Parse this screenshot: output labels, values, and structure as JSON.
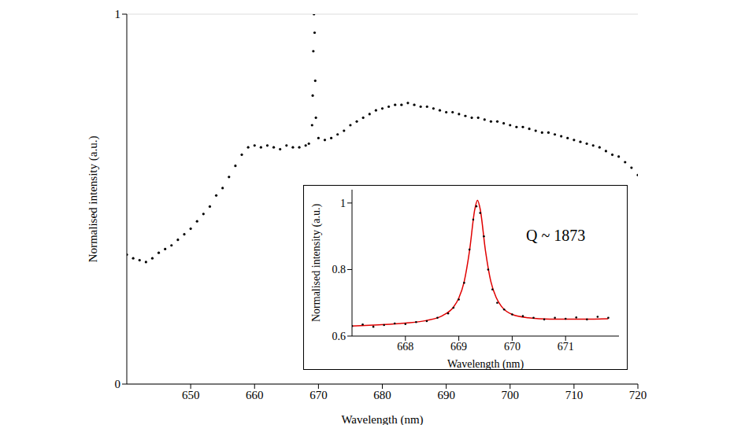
{
  "chart_data": [
    {
      "type": "scatter",
      "x_label": "Wavelength (nm)",
      "y_label": "Normalised intensity (a.u.)",
      "color": "#000000",
      "x": [
        640,
        641,
        642,
        643,
        644,
        645,
        646,
        647,
        648,
        649,
        650,
        651,
        652,
        653,
        654,
        655,
        656,
        657,
        658,
        659,
        660,
        661,
        662,
        663,
        664,
        665,
        666,
        667,
        668,
        668.5,
        669,
        669.1,
        669.2,
        669.3,
        669.4,
        669.5,
        669.6,
        670,
        671,
        672,
        673,
        674,
        675,
        676,
        677,
        678,
        679,
        680,
        681,
        682,
        683,
        684,
        685,
        686,
        687,
        688,
        689,
        690,
        691,
        692,
        693,
        694,
        695,
        696,
        697,
        698,
        699,
        700,
        701,
        702,
        703,
        704,
        705,
        706,
        707,
        708,
        709,
        710,
        711,
        712,
        713,
        714,
        715,
        716,
        717,
        718,
        719,
        720
      ],
      "values": [
        0.35,
        0.34,
        0.335,
        0.33,
        0.34,
        0.355,
        0.365,
        0.375,
        0.39,
        0.405,
        0.42,
        0.44,
        0.46,
        0.48,
        0.51,
        0.53,
        0.56,
        0.59,
        0.62,
        0.64,
        0.645,
        0.64,
        0.645,
        0.64,
        0.635,
        0.645,
        0.64,
        0.64,
        0.645,
        0.65,
        0.7,
        0.78,
        0.9,
        1.0,
        0.95,
        0.82,
        0.72,
        0.665,
        0.66,
        0.665,
        0.675,
        0.685,
        0.7,
        0.71,
        0.72,
        0.73,
        0.74,
        0.745,
        0.75,
        0.755,
        0.755,
        0.76,
        0.755,
        0.75,
        0.75,
        0.745,
        0.74,
        0.735,
        0.735,
        0.73,
        0.725,
        0.72,
        0.72,
        0.715,
        0.71,
        0.71,
        0.705,
        0.7,
        0.695,
        0.695,
        0.69,
        0.685,
        0.68,
        0.68,
        0.675,
        0.67,
        0.665,
        0.66,
        0.655,
        0.65,
        0.645,
        0.64,
        0.63,
        0.62,
        0.615,
        0.6,
        0.585,
        0.565
      ],
      "xlim": [
        640,
        720
      ],
      "ylim": [
        0,
        1
      ],
      "xticks": [
        650,
        660,
        670,
        680,
        690,
        700,
        710,
        720
      ],
      "yticks": [
        0,
        1
      ],
      "grid": true
    },
    {
      "type": "scatter",
      "x_label": "Wavelength (nm)",
      "y_label": "Normalised intensity (a.u.)",
      "annotation": "Q ~ 1873",
      "xlim": [
        667,
        672
      ],
      "ylim": [
        0.6,
        1.04
      ],
      "xticks": [
        668,
        669,
        670,
        671
      ],
      "yticks": [
        0.6,
        0.8,
        1
      ],
      "series": [
        {
          "type": "scatter",
          "color": "#000000",
          "x": [
            667.0,
            667.2,
            667.4,
            667.6,
            667.8,
            668.0,
            668.2,
            668.4,
            668.6,
            668.8,
            668.9,
            669.0,
            669.1,
            669.2,
            669.27,
            669.33,
            669.4,
            669.47,
            669.55,
            669.63,
            669.72,
            669.85,
            670.0,
            670.2,
            670.4,
            670.6,
            670.8,
            671.0,
            671.2,
            671.4,
            671.6,
            671.8
          ],
          "values": [
            0.63,
            0.635,
            0.628,
            0.633,
            0.638,
            0.636,
            0.642,
            0.645,
            0.655,
            0.668,
            0.685,
            0.71,
            0.76,
            0.86,
            0.95,
            0.99,
            0.97,
            0.9,
            0.8,
            0.74,
            0.7,
            0.68,
            0.665,
            0.66,
            0.655,
            0.65,
            0.655,
            0.652,
            0.656,
            0.65,
            0.658,
            0.655
          ]
        },
        {
          "type": "line",
          "color": "#e00000",
          "x": [
            667,
            667.5,
            668,
            668.4,
            668.7,
            668.9,
            669.0,
            669.1,
            669.2,
            669.3,
            669.35,
            669.4,
            669.5,
            669.6,
            669.7,
            669.8,
            670.0,
            670.3,
            670.7,
            671.2,
            671.8
          ],
          "values": [
            0.63,
            0.634,
            0.639,
            0.647,
            0.662,
            0.687,
            0.714,
            0.763,
            0.855,
            0.981,
            1.008,
            0.982,
            0.856,
            0.764,
            0.716,
            0.689,
            0.665,
            0.655,
            0.651,
            0.651,
            0.652
          ]
        }
      ]
    }
  ]
}
